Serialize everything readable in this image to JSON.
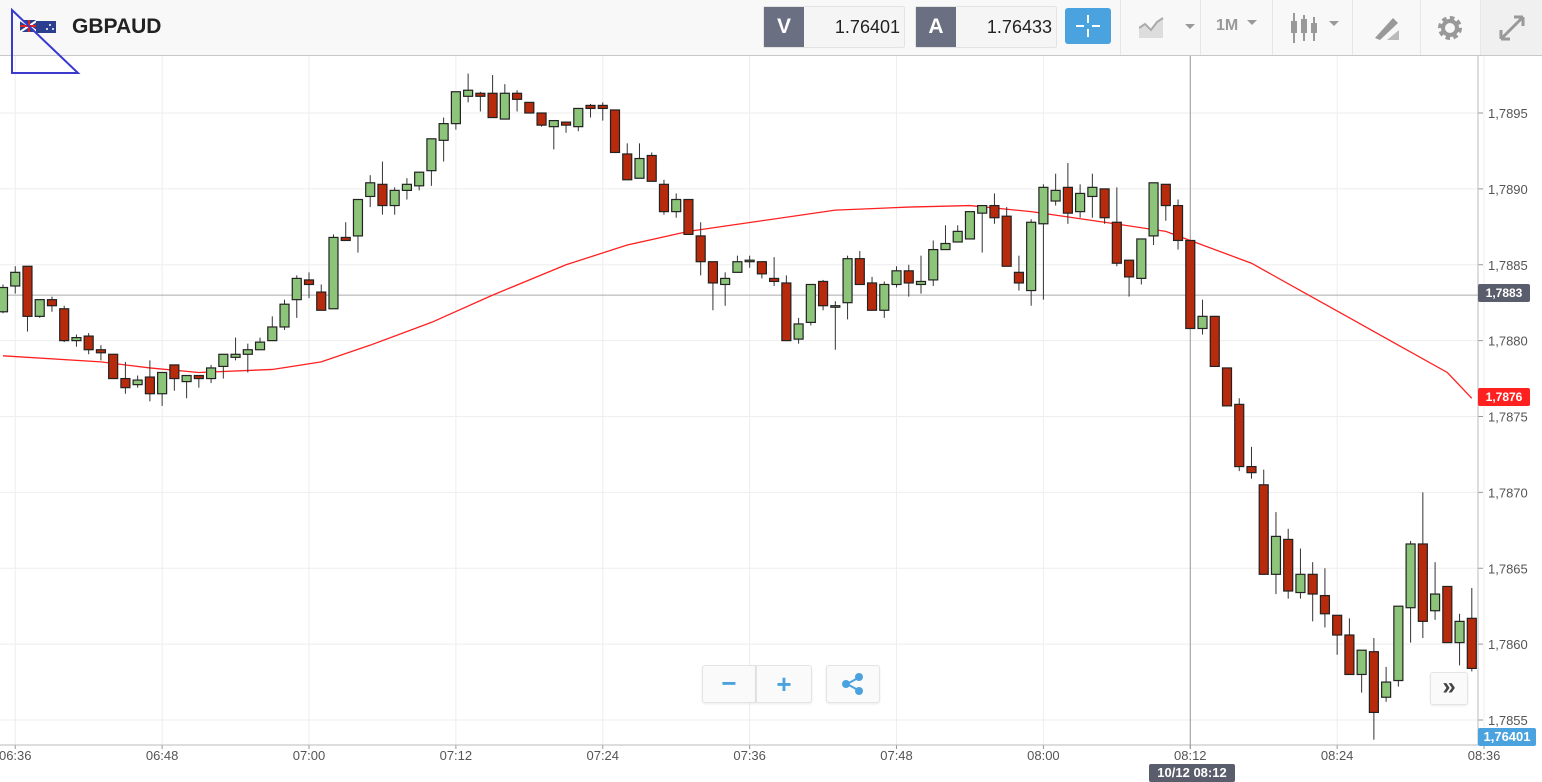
{
  "header": {
    "symbol": "GBPAUD",
    "flag_icon": "gb-au-flag-icon",
    "bid": {
      "label": "V",
      "value": "1.76401"
    },
    "ask": {
      "label": "A",
      "value": "1.76433"
    },
    "timeframe": "1M",
    "tools": [
      "crosshair-icon",
      "chart-type-area-icon",
      "timeframe-dropdown",
      "candlestick-icon",
      "drawing-tool-icon",
      "gear-icon",
      "expand-icon"
    ]
  },
  "colors": {
    "up": "#8cc47a",
    "down": "#b82a0c",
    "ma": "#ff2020",
    "accent": "#4aa3df",
    "price_tag": "#5a5d6b"
  },
  "overlay_tags": {
    "last_line": "1,7883",
    "ma_value": "1,7876",
    "bid_value": "1,76401",
    "crosshair_time": "10/12 08:12"
  },
  "controls": {
    "zoom_out": "−",
    "zoom_in": "+",
    "scroll_right": "»"
  },
  "chart_data": {
    "type": "candlestick",
    "interval": "1M",
    "ylim": [
      1.7854,
      1.7899
    ],
    "y_ticks": [
      "1,7895",
      "1,7890",
      "1,7885",
      "1,7880",
      "1,7875",
      "1,7870",
      "1,7865",
      "1,7860",
      "1,7855"
    ],
    "y_tick_values": [
      1.7895,
      1.789,
      1.7885,
      1.788,
      1.7875,
      1.787,
      1.7865,
      1.786,
      1.7855
    ],
    "x_ticks": [
      "06:36",
      "06:48",
      "07:00",
      "07:12",
      "07:24",
      "07:36",
      "07:48",
      "08:00",
      "08:12",
      "08:24",
      "08:36"
    ],
    "horizontal_line": 1.7883,
    "crosshair_time": "08:12",
    "columns": [
      "time",
      "open",
      "high",
      "low",
      "close"
    ],
    "candles": [
      [
        "06:35",
        1.78819,
        1.78837,
        1.78818,
        1.78835
      ],
      [
        "06:36",
        1.78836,
        1.78849,
        1.78831,
        1.78845
      ],
      [
        "06:37",
        1.78849,
        1.78849,
        1.78806,
        1.78816
      ],
      [
        "06:38",
        1.78816,
        1.78827,
        1.78815,
        1.78827
      ],
      [
        "06:39",
        1.78827,
        1.78829,
        1.78819,
        1.78823
      ],
      [
        "06:40",
        1.78821,
        1.78823,
        1.78799,
        1.788
      ],
      [
        "06:41",
        1.788,
        1.78804,
        1.78796,
        1.78802
      ],
      [
        "06:42",
        1.78803,
        1.78805,
        1.78791,
        1.78794
      ],
      [
        "06:43",
        1.78794,
        1.78797,
        1.78787,
        1.78792
      ],
      [
        "06:44",
        1.78791,
        1.78791,
        1.78775,
        1.78775
      ],
      [
        "06:45",
        1.78775,
        1.78786,
        1.78765,
        1.78769
      ],
      [
        "06:46",
        1.78771,
        1.78777,
        1.78769,
        1.78774
      ],
      [
        "06:47",
        1.78776,
        1.78787,
        1.7876,
        1.78765
      ],
      [
        "06:48",
        1.78765,
        1.78779,
        1.78757,
        1.78779
      ],
      [
        "06:49",
        1.78784,
        1.78784,
        1.78767,
        1.78775
      ],
      [
        "06:50",
        1.78773,
        1.78777,
        1.78762,
        1.78777
      ],
      [
        "06:51",
        1.78777,
        1.78777,
        1.78769,
        1.78775
      ],
      [
        "06:52",
        1.78775,
        1.78784,
        1.78772,
        1.78782
      ],
      [
        "06:53",
        1.78783,
        1.78791,
        1.78775,
        1.78791
      ],
      [
        "06:54",
        1.78789,
        1.78802,
        1.78787,
        1.78791
      ],
      [
        "06:55",
        1.78791,
        1.78798,
        1.78779,
        1.78794
      ],
      [
        "06:56",
        1.78794,
        1.78802,
        1.78794,
        1.78799
      ],
      [
        "06:57",
        1.788,
        1.78816,
        1.788,
        1.78809
      ],
      [
        "06:58",
        1.78809,
        1.78827,
        1.78807,
        1.78824
      ],
      [
        "06:59",
        1.78827,
        1.78843,
        1.78815,
        1.78841
      ],
      [
        "07:00",
        1.7884,
        1.78845,
        1.78828,
        1.78837
      ],
      [
        "07:01",
        1.78832,
        1.78837,
        1.7882,
        1.7882
      ],
      [
        "07:02",
        1.78821,
        1.7887,
        1.78821,
        1.78868
      ],
      [
        "07:03",
        1.78868,
        1.78878,
        1.78866,
        1.78866
      ],
      [
        "07:04",
        1.78869,
        1.78893,
        1.78858,
        1.78893
      ],
      [
        "07:05",
        1.78895,
        1.78909,
        1.78888,
        1.78904
      ],
      [
        "07:06",
        1.78903,
        1.78918,
        1.78883,
        1.78889
      ],
      [
        "07:07",
        1.78889,
        1.78901,
        1.78883,
        1.78899
      ],
      [
        "07:08",
        1.78899,
        1.78907,
        1.78893,
        1.78903
      ],
      [
        "07:09",
        1.78902,
        1.78911,
        1.78899,
        1.78911
      ],
      [
        "07:10",
        1.78912,
        1.78933,
        1.78902,
        1.78933
      ],
      [
        "07:11",
        1.78932,
        1.78947,
        1.78918,
        1.78943
      ],
      [
        "07:12",
        1.78943,
        1.78964,
        1.78939,
        1.78964
      ],
      [
        "07:13",
        1.78961,
        1.78976,
        1.78957,
        1.78965
      ],
      [
        "07:14",
        1.78963,
        1.78964,
        1.78951,
        1.78961
      ],
      [
        "07:15",
        1.78963,
        1.78975,
        1.78947,
        1.78947
      ],
      [
        "07:16",
        1.78946,
        1.78969,
        1.78946,
        1.78963
      ],
      [
        "07:17",
        1.78963,
        1.78965,
        1.78951,
        1.78959
      ],
      [
        "07:18",
        1.78957,
        1.78957,
        1.7895,
        1.7895
      ],
      [
        "07:19",
        1.7895,
        1.7895,
        1.78941,
        1.78942
      ],
      [
        "07:20",
        1.78941,
        1.78945,
        1.78926,
        1.78945
      ],
      [
        "07:21",
        1.78944,
        1.78944,
        1.78937,
        1.78942
      ],
      [
        "07:22",
        1.78941,
        1.78953,
        1.78938,
        1.78953
      ],
      [
        "07:23",
        1.78955,
        1.78956,
        1.78947,
        1.78953
      ],
      [
        "07:24",
        1.78955,
        1.78957,
        1.78945,
        1.78953
      ],
      [
        "07:25",
        1.78952,
        1.78952,
        1.78924,
        1.78924
      ],
      [
        "07:26",
        1.78923,
        1.7893,
        1.78906,
        1.78906
      ],
      [
        "07:27",
        1.78907,
        1.7893,
        1.78907,
        1.7892
      ],
      [
        "07:28",
        1.78922,
        1.78924,
        1.78905,
        1.78905
      ],
      [
        "07:29",
        1.78903,
        1.78906,
        1.78883,
        1.78885
      ],
      [
        "07:30",
        1.78885,
        1.78897,
        1.78881,
        1.78893
      ],
      [
        "07:31",
        1.78893,
        1.78893,
        1.7887,
        1.7887
      ],
      [
        "07:32",
        1.78869,
        1.78878,
        1.78843,
        1.78852
      ],
      [
        "07:33",
        1.78852,
        1.78852,
        1.7882,
        1.78838
      ],
      [
        "07:34",
        1.78837,
        1.78845,
        1.78823,
        1.78841
      ],
      [
        "07:35",
        1.78845,
        1.78856,
        1.78845,
        1.78852
      ],
      [
        "07:36",
        1.78852,
        1.78856,
        1.78848,
        1.78853
      ],
      [
        "07:37",
        1.78852,
        1.78852,
        1.78841,
        1.78844
      ],
      [
        "07:38",
        1.78841,
        1.78855,
        1.78836,
        1.78839
      ],
      [
        "07:39",
        1.78838,
        1.78843,
        1.788,
        1.788
      ],
      [
        "07:40",
        1.78801,
        1.78815,
        1.78798,
        1.78811
      ],
      [
        "07:41",
        1.78812,
        1.78837,
        1.7881,
        1.78837
      ],
      [
        "07:42",
        1.78839,
        1.7884,
        1.7882,
        1.78823
      ],
      [
        "07:43",
        1.78822,
        1.78826,
        1.78794,
        1.78823
      ],
      [
        "07:44",
        1.78825,
        1.78856,
        1.78814,
        1.78854
      ],
      [
        "07:45",
        1.78854,
        1.78859,
        1.78837,
        1.78837
      ],
      [
        "07:46",
        1.78838,
        1.78842,
        1.7882,
        1.7882
      ],
      [
        "07:47",
        1.7882,
        1.78839,
        1.78815,
        1.78837
      ],
      [
        "07:48",
        1.78837,
        1.78849,
        1.78835,
        1.78846
      ],
      [
        "07:49",
        1.78846,
        1.7885,
        1.78829,
        1.78838
      ],
      [
        "07:50",
        1.78837,
        1.78856,
        1.78831,
        1.78839
      ],
      [
        "07:51",
        1.7884,
        1.78866,
        1.78836,
        1.7886
      ],
      [
        "07:52",
        1.7886,
        1.78876,
        1.7886,
        1.78864
      ],
      [
        "07:53",
        1.78865,
        1.78876,
        1.78865,
        1.78872
      ],
      [
        "07:54",
        1.78867,
        1.78885,
        1.78867,
        1.78885
      ],
      [
        "07:55",
        1.78884,
        1.78889,
        1.78858,
        1.78889
      ],
      [
        "07:56",
        1.78889,
        1.78897,
        1.78877,
        1.78881
      ],
      [
        "07:57",
        1.78882,
        1.78888,
        1.78849,
        1.78849
      ],
      [
        "07:58",
        1.78845,
        1.78856,
        1.78833,
        1.78838
      ],
      [
        "07:59",
        1.78833,
        1.7888,
        1.78823,
        1.78878
      ],
      [
        "08:00",
        1.78877,
        1.78903,
        1.78827,
        1.78901
      ],
      [
        "08:01",
        1.78892,
        1.7891,
        1.78889,
        1.78899
      ],
      [
        "08:02",
        1.78901,
        1.78917,
        1.78877,
        1.78884
      ],
      [
        "08:03",
        1.78885,
        1.78903,
        1.78881,
        1.78897
      ],
      [
        "08:04",
        1.78895,
        1.7891,
        1.78881,
        1.78901
      ],
      [
        "08:05",
        1.789,
        1.789,
        1.78877,
        1.78881
      ],
      [
        "08:06",
        1.78878,
        1.78901,
        1.78849,
        1.78851
      ],
      [
        "08:07",
        1.78853,
        1.78853,
        1.78829,
        1.78842
      ],
      [
        "08:08",
        1.78841,
        1.78867,
        1.78837,
        1.78867
      ],
      [
        "08:09",
        1.78869,
        1.78904,
        1.78863,
        1.78904
      ],
      [
        "08:10",
        1.78903,
        1.78903,
        1.78879,
        1.78889
      ],
      [
        "08:11",
        1.78889,
        1.78893,
        1.7886,
        1.78866
      ],
      [
        "08:12",
        1.78866,
        1.78866,
        1.78808,
        1.78808
      ],
      [
        "08:13",
        1.78808,
        1.78827,
        1.78804,
        1.78816
      ],
      [
        "08:14",
        1.78816,
        1.78816,
        1.78783,
        1.78783
      ],
      [
        "08:15",
        1.78782,
        1.78782,
        1.78757,
        1.78757
      ],
      [
        "08:16",
        1.78758,
        1.78762,
        1.78714,
        1.78717
      ],
      [
        "08:17",
        1.78717,
        1.7873,
        1.78709,
        1.78713
      ],
      [
        "08:18",
        1.78705,
        1.78715,
        1.78646,
        1.78646
      ],
      [
        "08:19",
        1.78646,
        1.78687,
        1.78633,
        1.78671
      ],
      [
        "08:20",
        1.78669,
        1.78676,
        1.7863,
        1.78635
      ],
      [
        "08:21",
        1.78634,
        1.78663,
        1.7863,
        1.78646
      ],
      [
        "08:22",
        1.78646,
        1.78654,
        1.78615,
        1.78633
      ],
      [
        "08:23",
        1.78632,
        1.7865,
        1.78611,
        1.7862
      ],
      [
        "08:24",
        1.78619,
        1.78619,
        1.78593,
        1.78606
      ],
      [
        "08:25",
        1.78606,
        1.78617,
        1.7858,
        1.7858
      ],
      [
        "08:26",
        1.7858,
        1.78596,
        1.78568,
        1.78596
      ],
      [
        "08:27",
        1.78595,
        1.78604,
        1.78537,
        1.78555
      ],
      [
        "08:28",
        1.78565,
        1.78585,
        1.78562,
        1.78575
      ],
      [
        "08:29",
        1.78576,
        1.78625,
        1.78572,
        1.78625
      ],
      [
        "08:30",
        1.78624,
        1.78668,
        1.78601,
        1.78666
      ],
      [
        "08:31",
        1.78666,
        1.787,
        1.78604,
        1.78615
      ],
      [
        "08:32",
        1.78622,
        1.78654,
        1.78616,
        1.78633
      ],
      [
        "08:33",
        1.78638,
        1.78638,
        1.78601,
        1.78601
      ],
      [
        "08:34",
        1.78601,
        1.7862,
        1.78586,
        1.78615
      ],
      [
        "08:35",
        1.78617,
        1.78637,
        1.78582,
        1.78584
      ]
    ],
    "moving_average": {
      "x": [
        "06:35",
        "06:43",
        "06:47",
        "06:51",
        "06:57",
        "07:01",
        "07:05",
        "07:10",
        "07:15",
        "07:21",
        "07:26",
        "07:31",
        "07:37",
        "07:43",
        "07:49",
        "07:54",
        "07:59",
        "08:05",
        "08:10",
        "08:12",
        "08:17",
        "08:21",
        "08:25",
        "08:29",
        "08:33",
        "08:35"
      ],
      "y": [
        1.7879,
        1.78786,
        1.78782,
        1.78779,
        1.78781,
        1.78786,
        1.78797,
        1.78812,
        1.7883,
        1.7885,
        1.78863,
        1.78872,
        1.78879,
        1.78886,
        1.78888,
        1.78889,
        1.78885,
        1.78878,
        1.78872,
        1.78866,
        1.78851,
        1.78833,
        1.78815,
        1.78797,
        1.78779,
        1.78762
      ]
    }
  }
}
